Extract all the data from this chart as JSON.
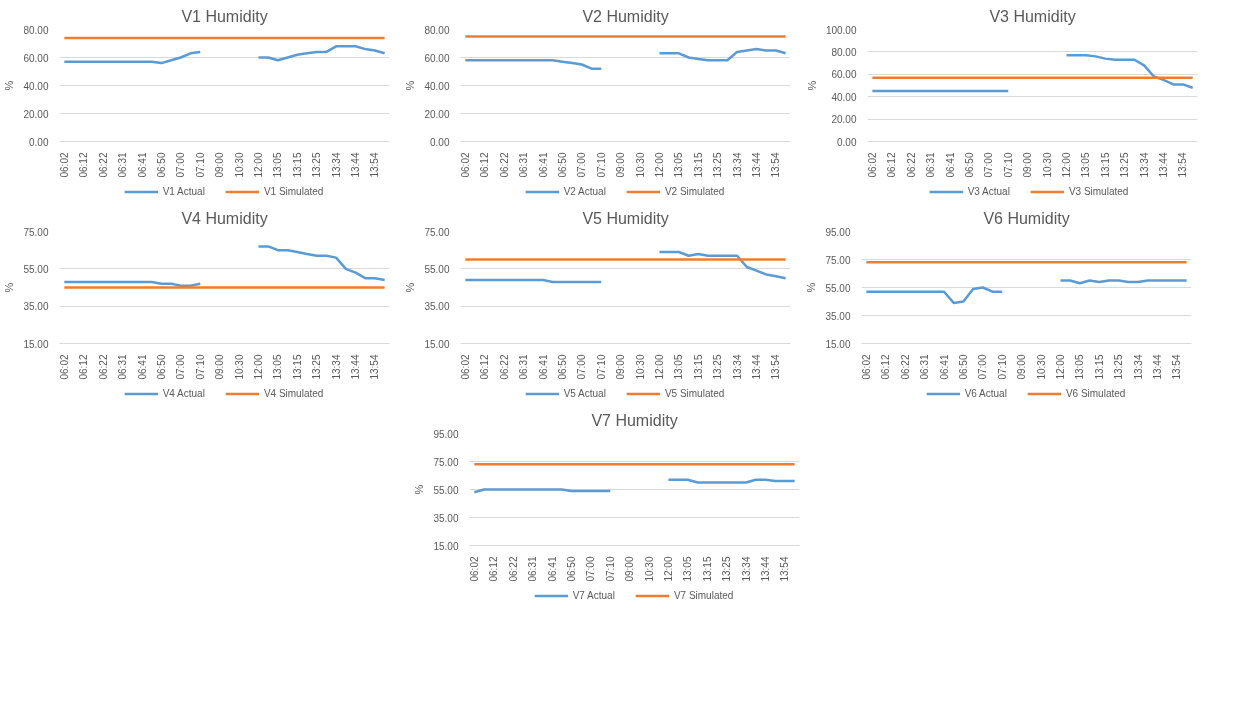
{
  "chart_data": [
    {
      "type": "line",
      "title": "V1 Humidity",
      "ylabel": "%",
      "grid": "y",
      "legend": "bottom",
      "marker": "none",
      "line_style": "solid",
      "categories": [
        "06:02",
        null,
        "06:12",
        null,
        "06:22",
        null,
        "06:31",
        null,
        "06:41",
        null,
        "06:50",
        null,
        "07:00",
        null,
        "07:10",
        null,
        "09:00",
        null,
        "10:30",
        null,
        "12:00",
        null,
        "13:05",
        null,
        "13:15",
        null,
        "13:25",
        null,
        "13:34",
        null,
        "13:44",
        null,
        "13:54",
        null
      ],
      "ylim": [
        0,
        80
      ],
      "yticks": [
        {
          "value": 0,
          "label": "0.00"
        },
        {
          "value": 20,
          "label": "20.00"
        },
        {
          "value": 40,
          "label": "40.00"
        },
        {
          "value": 60,
          "label": "60.00"
        },
        {
          "value": 80,
          "label": "80.00"
        }
      ],
      "series": [
        {
          "name": "V1 Actual",
          "color": "#5b9bd5",
          "values": [
            57,
            57,
            57,
            57,
            57,
            57,
            57,
            57,
            57,
            57,
            56,
            58,
            60,
            63,
            64,
            null,
            null,
            null,
            null,
            null,
            60,
            60,
            58,
            60,
            62,
            63,
            64,
            64,
            68,
            68,
            68,
            66,
            65,
            63
          ]
        },
        {
          "name": "V1 Simulated",
          "color": "#ed7d31",
          "values": [
            74,
            74,
            74,
            74,
            74,
            74,
            74,
            74,
            74,
            74,
            74,
            74,
            74,
            74,
            74,
            74,
            74,
            74,
            74,
            74,
            74,
            74,
            74,
            74,
            74,
            74,
            74,
            74,
            74,
            74,
            74,
            74,
            74,
            74
          ]
        }
      ]
    },
    {
      "type": "line",
      "title": "V2 Humidity",
      "ylabel": "%",
      "grid": "y",
      "legend": "bottom",
      "marker": "none",
      "line_style": "solid",
      "categories": [
        "06:02",
        null,
        "06:12",
        null,
        "06:22",
        null,
        "06:31",
        null,
        "06:41",
        null,
        "06:50",
        null,
        "07:00",
        null,
        "07:10",
        null,
        "09:00",
        null,
        "10:30",
        null,
        "12:00",
        null,
        "13:05",
        null,
        "13:15",
        null,
        "13:25",
        null,
        "13:34",
        null,
        "13:44",
        null,
        "13:54",
        null
      ],
      "ylim": [
        0,
        80
      ],
      "yticks": [
        {
          "value": 0,
          "label": "0.00"
        },
        {
          "value": 20,
          "label": "20.00"
        },
        {
          "value": 40,
          "label": "40.00"
        },
        {
          "value": 60,
          "label": "60.00"
        },
        {
          "value": 80,
          "label": "80.00"
        }
      ],
      "series": [
        {
          "name": "V2 Actual",
          "color": "#5b9bd5",
          "values": [
            58,
            58,
            58,
            58,
            58,
            58,
            58,
            58,
            58,
            58,
            57,
            56,
            55,
            52,
            52,
            null,
            null,
            null,
            null,
            null,
            63,
            63,
            63,
            60,
            59,
            58,
            58,
            58,
            64,
            65,
            66,
            65,
            65,
            63
          ]
        },
        {
          "name": "V2 Simulated",
          "color": "#ed7d31",
          "values": [
            75,
            75,
            75,
            75,
            75,
            75,
            75,
            75,
            75,
            75,
            75,
            75,
            75,
            75,
            75,
            75,
            75,
            75,
            75,
            75,
            75,
            75,
            75,
            75,
            75,
            75,
            75,
            75,
            75,
            75,
            75,
            75,
            75,
            75
          ]
        }
      ]
    },
    {
      "type": "line",
      "title": "V3 Humidity",
      "ylabel": "%",
      "grid": "y",
      "legend": "bottom",
      "marker": "none",
      "line_style": "solid",
      "categories": [
        "06:02",
        null,
        "06:12",
        null,
        "06:22",
        null,
        "06:31",
        null,
        "06:41",
        null,
        "06:50",
        null,
        "07:00",
        null,
        "07:10",
        null,
        "09:00",
        null,
        "10:30",
        null,
        "12:00",
        null,
        "13:05",
        null,
        "13:15",
        null,
        "13:25",
        null,
        "13:34",
        null,
        "13:44",
        null,
        "13:54",
        null
      ],
      "ylim": [
        0,
        100
      ],
      "yticks": [
        {
          "value": 0,
          "label": "0.00"
        },
        {
          "value": 20,
          "label": "20.00"
        },
        {
          "value": 40,
          "label": "40.00"
        },
        {
          "value": 60,
          "label": "60.00"
        },
        {
          "value": 80,
          "label": "80.00"
        },
        {
          "value": 100,
          "label": "100.00"
        }
      ],
      "series": [
        {
          "name": "V3 Actual",
          "color": "#5b9bd5",
          "values": [
            45,
            45,
            45,
            45,
            45,
            45,
            45,
            45,
            45,
            45,
            45,
            45,
            45,
            45,
            45,
            null,
            null,
            null,
            null,
            null,
            77,
            77,
            77,
            76,
            74,
            73,
            73,
            73,
            68,
            58,
            55,
            51,
            51,
            48
          ]
        },
        {
          "name": "V3 Simulated",
          "color": "#ed7d31",
          "values": [
            57,
            57,
            57,
            57,
            57,
            57,
            57,
            57,
            57,
            57,
            57,
            57,
            57,
            57,
            57,
            57,
            57,
            57,
            57,
            57,
            57,
            57,
            57,
            57,
            57,
            57,
            57,
            57,
            57,
            57,
            57,
            57,
            57,
            57
          ]
        }
      ]
    },
    {
      "type": "line",
      "title": "V4 Humidity",
      "ylabel": "%",
      "grid": "y",
      "legend": "bottom",
      "marker": "none",
      "line_style": "solid",
      "categories": [
        "06:02",
        null,
        "06:12",
        null,
        "06:22",
        null,
        "06:31",
        null,
        "06:41",
        null,
        "06:50",
        null,
        "07:00",
        null,
        "07:10",
        null,
        "09:00",
        null,
        "10:30",
        null,
        "12:00",
        null,
        "13:05",
        null,
        "13:15",
        null,
        "13:25",
        null,
        "13:34",
        null,
        "13:44",
        null,
        "13:54",
        null
      ],
      "ylim": [
        15,
        75
      ],
      "yticks": [
        {
          "value": 15,
          "label": "15.00"
        },
        {
          "value": 35,
          "label": "35.00"
        },
        {
          "value": 55,
          "label": "55.00"
        },
        {
          "value": 75,
          "label": "75.00"
        }
      ],
      "series": [
        {
          "name": "V4 Actual",
          "color": "#5b9bd5",
          "values": [
            48,
            48,
            48,
            48,
            48,
            48,
            48,
            48,
            48,
            48,
            47,
            47,
            46,
            46,
            47,
            null,
            null,
            null,
            null,
            null,
            67,
            67,
            65,
            65,
            64,
            63,
            62,
            62,
            61,
            55,
            53,
            50,
            50,
            49
          ]
        },
        {
          "name": "V4 Simulated",
          "color": "#ed7d31",
          "values": [
            45,
            45,
            45,
            45,
            45,
            45,
            45,
            45,
            45,
            45,
            45,
            45,
            45,
            45,
            45,
            45,
            45,
            45,
            45,
            45,
            45,
            45,
            45,
            45,
            45,
            45,
            45,
            45,
            45,
            45,
            45,
            45,
            45,
            45
          ]
        }
      ]
    },
    {
      "type": "line",
      "title": "V5 Humidity",
      "ylabel": "%",
      "grid": "y",
      "legend": "bottom",
      "marker": "none",
      "line_style": "solid",
      "categories": [
        "06:02",
        null,
        "06:12",
        null,
        "06:22",
        null,
        "06:31",
        null,
        "06:41",
        null,
        "06:50",
        null,
        "07:00",
        null,
        "07:10",
        null,
        "09:00",
        null,
        "10:30",
        null,
        "12:00",
        null,
        "13:05",
        null,
        "13:15",
        null,
        "13:25",
        null,
        "13:34",
        null,
        "13:44",
        null,
        "13:54",
        null
      ],
      "ylim": [
        15,
        75
      ],
      "yticks": [
        {
          "value": 15,
          "label": "15.00"
        },
        {
          "value": 35,
          "label": "35.00"
        },
        {
          "value": 55,
          "label": "55.00"
        },
        {
          "value": 75,
          "label": "75.00"
        }
      ],
      "series": [
        {
          "name": "V5 Actual",
          "color": "#5b9bd5",
          "values": [
            49,
            49,
            49,
            49,
            49,
            49,
            49,
            49,
            49,
            48,
            48,
            48,
            48,
            48,
            48,
            null,
            null,
            null,
            null,
            null,
            64,
            64,
            64,
            62,
            63,
            62,
            62,
            62,
            62,
            56,
            54,
            52,
            51,
            50
          ]
        },
        {
          "name": "V5 Simulated",
          "color": "#ed7d31",
          "values": [
            60,
            60,
            60,
            60,
            60,
            60,
            60,
            60,
            60,
            60,
            60,
            60,
            60,
            60,
            60,
            60,
            60,
            60,
            60,
            60,
            60,
            60,
            60,
            60,
            60,
            60,
            60,
            60,
            60,
            60,
            60,
            60,
            60,
            60
          ]
        }
      ]
    },
    {
      "type": "line",
      "title": "V6 Humidity",
      "ylabel": "%",
      "grid": "y",
      "legend": "bottom",
      "marker": "none",
      "line_style": "solid",
      "categories": [
        "06:02",
        null,
        "06:12",
        null,
        "06:22",
        null,
        "06:31",
        null,
        "06:41",
        null,
        "06:50",
        null,
        "07:00",
        null,
        "07:10",
        null,
        "09:00",
        null,
        "10:30",
        null,
        "12:00",
        null,
        "13:05",
        null,
        "13:15",
        null,
        "13:25",
        null,
        "13:34",
        null,
        "13:44",
        null,
        "13:54",
        null
      ],
      "ylim": [
        15,
        95
      ],
      "yticks": [
        {
          "value": 15,
          "label": "15.00"
        },
        {
          "value": 35,
          "label": "35.00"
        },
        {
          "value": 55,
          "label": "55.00"
        },
        {
          "value": 75,
          "label": "75.00"
        },
        {
          "value": 95,
          "label": "95.00"
        }
      ],
      "series": [
        {
          "name": "V6 Actual",
          "color": "#5b9bd5",
          "values": [
            52,
            52,
            52,
            52,
            52,
            52,
            52,
            52,
            52,
            44,
            45,
            54,
            55,
            52,
            52,
            null,
            null,
            null,
            null,
            null,
            60,
            60,
            58,
            60,
            59,
            60,
            60,
            59,
            59,
            60,
            60,
            60,
            60,
            60
          ]
        },
        {
          "name": "V6 Simulated",
          "color": "#ed7d31",
          "values": [
            73,
            73,
            73,
            73,
            73,
            73,
            73,
            73,
            73,
            73,
            73,
            73,
            73,
            73,
            73,
            73,
            73,
            73,
            73,
            73,
            73,
            73,
            73,
            73,
            73,
            73,
            73,
            73,
            73,
            73,
            73,
            73,
            73,
            73
          ]
        }
      ]
    },
    {
      "type": "line",
      "title": "V7 Humidity",
      "ylabel": "%",
      "grid": "y",
      "legend": "bottom",
      "marker": "none",
      "line_style": "solid",
      "categories": [
        "06:02",
        null,
        "06:12",
        null,
        "06:22",
        null,
        "06:31",
        null,
        "06:41",
        null,
        "06:50",
        null,
        "07:00",
        null,
        "07:10",
        null,
        "09:00",
        null,
        "10:30",
        null,
        "12:00",
        null,
        "13:05",
        null,
        "13:15",
        null,
        "13:25",
        null,
        "13:34",
        null,
        "13:44",
        null,
        "13:54",
        null
      ],
      "ylim": [
        15,
        95
      ],
      "yticks": [
        {
          "value": 15,
          "label": "15.00"
        },
        {
          "value": 35,
          "label": "35.00"
        },
        {
          "value": 55,
          "label": "55.00"
        },
        {
          "value": 75,
          "label": "75.00"
        },
        {
          "value": 95,
          "label": "95.00"
        }
      ],
      "series": [
        {
          "name": "V7 Actual",
          "color": "#5b9bd5",
          "values": [
            53,
            55,
            55,
            55,
            55,
            55,
            55,
            55,
            55,
            55,
            54,
            54,
            54,
            54,
            54,
            null,
            null,
            null,
            null,
            null,
            62,
            62,
            62,
            60,
            60,
            60,
            60,
            60,
            60,
            62,
            62,
            61,
            61,
            61
          ]
        },
        {
          "name": "V7 Simulated",
          "color": "#ed7d31",
          "values": [
            73,
            73,
            73,
            73,
            73,
            73,
            73,
            73,
            73,
            73,
            73,
            73,
            73,
            73,
            73,
            73,
            73,
            73,
            73,
            73,
            73,
            73,
            73,
            73,
            73,
            73,
            73,
            73,
            73,
            73,
            73,
            73,
            73,
            73
          ]
        }
      ]
    }
  ]
}
